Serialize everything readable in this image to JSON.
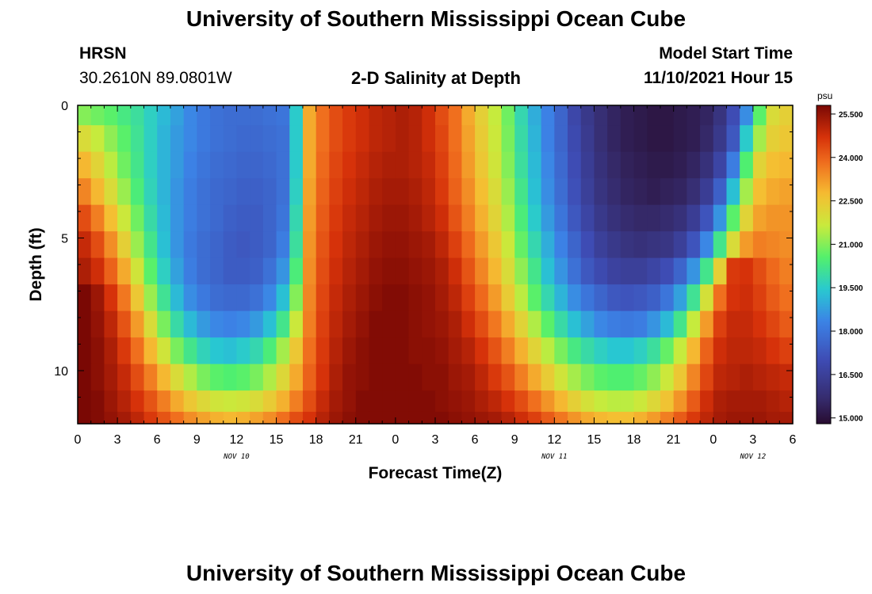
{
  "header": {
    "title": "University of Southern Mississippi Ocean Cube",
    "station": "HRSN",
    "coords": "30.2610N  89.0801W",
    "plot_title": "2-D Salinity at Depth",
    "model_start_label": "Model Start Time",
    "model_start_value": "11/10/2021 Hour 15"
  },
  "footer": {
    "title": "University of Southern Mississippi Ocean Cube"
  },
  "chart_data": {
    "type": "heatmap",
    "title": "2-D Salinity at Depth",
    "xlabel": "Forecast Time(Z)",
    "ylabel": "Depth (ft)",
    "colorbar_unit": "psu",
    "xlim": [
      0,
      54
    ],
    "ylim": [
      0,
      12
    ],
    "x_tick_values": [
      0,
      3,
      6,
      9,
      12,
      15,
      18,
      21,
      24,
      27,
      30,
      33,
      36,
      39,
      42,
      45,
      48,
      51,
      54
    ],
    "x_tick_labels": [
      "0",
      "3",
      "6",
      "9",
      "12",
      "15",
      "18",
      "21",
      "0",
      "3",
      "6",
      "9",
      "12",
      "15",
      "18",
      "21",
      "0",
      "3",
      "6"
    ],
    "date_labels": [
      {
        "text": "NOV 10",
        "hours": 12
      },
      {
        "text": "NOV 11",
        "hours": 36
      },
      {
        "text": "NOV 12",
        "hours": 51
      }
    ],
    "y_ticks": [
      0,
      5,
      10
    ],
    "y_tick_labels": [
      "0",
      "5",
      "10"
    ],
    "colorbar_ticks": [
      25.5,
      24.0,
      22.5,
      21.0,
      19.5,
      18.0,
      16.5,
      15.0
    ],
    "colorbar_tick_labels": [
      "25.500",
      "24.000",
      "22.500",
      "21.000",
      "19.500",
      "18.000",
      "16.500",
      "15.000"
    ],
    "color_range": [
      14.8,
      25.8
    ],
    "depth_layers_ft": [
      0.25,
      1.25,
      2.25,
      3.25,
      4.25,
      5.25,
      6.25,
      7.25,
      8.25,
      9.25,
      10.25,
      11.25,
      11.85
    ],
    "column_hours": [
      0,
      1,
      2,
      3,
      4,
      5,
      6,
      7,
      8,
      9,
      10,
      11,
      12,
      13,
      14,
      15,
      16,
      17,
      18,
      19,
      20,
      21,
      22,
      23,
      24,
      25,
      26,
      27,
      28,
      29,
      30,
      31,
      32,
      33,
      34,
      35,
      36,
      37,
      38,
      39,
      40,
      41,
      42,
      43,
      44,
      45,
      46,
      47,
      48,
      49,
      50,
      51,
      52,
      53
    ],
    "salinity_grid_psu": [
      [
        21.0,
        20.8,
        20.6,
        20.3,
        20.0,
        19.6,
        19.2,
        18.8,
        18.4,
        18.1,
        17.9,
        17.8,
        17.8,
        17.8,
        17.9,
        18.0,
        19.5,
        23.0,
        23.8,
        24.3,
        24.6,
        24.8,
        25.0,
        25.1,
        25.2,
        25.1,
        24.8,
        24.3,
        23.8,
        23.0,
        22.3,
        21.6,
        20.8,
        19.8,
        19.0,
        18.3,
        17.6,
        16.8,
        16.2,
        15.8,
        15.5,
        15.3,
        15.2,
        15.1,
        15.1,
        15.2,
        15.3,
        15.5,
        16.0,
        17.0,
        18.5,
        20.6,
        22.0,
        22.3
      ],
      [
        22.0,
        21.6,
        21.1,
        20.6,
        20.1,
        19.6,
        19.1,
        18.7,
        18.4,
        18.1,
        17.9,
        17.8,
        17.7,
        17.7,
        17.8,
        17.9,
        19.5,
        23.0,
        23.8,
        24.3,
        24.6,
        24.8,
        25.0,
        25.1,
        25.2,
        25.1,
        24.8,
        24.4,
        23.8,
        23.1,
        22.4,
        21.7,
        20.9,
        19.9,
        19.1,
        18.3,
        17.6,
        16.9,
        16.3,
        15.8,
        15.5,
        15.3,
        15.2,
        15.1,
        15.1,
        15.2,
        15.3,
        15.6,
        16.2,
        17.3,
        19.5,
        21.3,
        22.3,
        22.5
      ],
      [
        22.8,
        22.2,
        21.5,
        20.8,
        20.2,
        19.6,
        19.1,
        18.7,
        18.3,
        18.0,
        17.8,
        17.7,
        17.6,
        17.6,
        17.7,
        17.9,
        19.5,
        23.0,
        23.9,
        24.4,
        24.7,
        24.9,
        25.1,
        25.2,
        25.2,
        25.1,
        24.9,
        24.5,
        23.9,
        23.2,
        22.5,
        21.8,
        21.0,
        20.0,
        19.2,
        18.4,
        17.7,
        17.0,
        16.4,
        15.9,
        15.6,
        15.4,
        15.3,
        15.2,
        15.2,
        15.3,
        15.5,
        15.9,
        16.7,
        18.2,
        20.5,
        22.2,
        22.7,
        22.8
      ],
      [
        23.5,
        22.8,
        22.0,
        21.2,
        20.4,
        19.7,
        19.1,
        18.6,
        18.2,
        17.9,
        17.7,
        17.6,
        17.5,
        17.5,
        17.6,
        17.9,
        19.6,
        23.1,
        24.0,
        24.5,
        24.8,
        25.0,
        25.2,
        25.3,
        25.3,
        25.2,
        25.0,
        24.6,
        24.0,
        23.4,
        22.7,
        22.0,
        21.2,
        20.2,
        19.3,
        18.5,
        17.8,
        17.1,
        16.5,
        16.0,
        15.7,
        15.5,
        15.4,
        15.3,
        15.4,
        15.5,
        15.8,
        16.4,
        17.5,
        19.3,
        21.3,
        22.7,
        23.0,
        23.1
      ],
      [
        24.3,
        23.6,
        22.7,
        21.7,
        20.8,
        19.9,
        19.2,
        18.6,
        18.2,
        17.9,
        17.7,
        17.5,
        17.4,
        17.4,
        17.6,
        18.0,
        19.8,
        23.2,
        24.1,
        24.6,
        24.9,
        25.1,
        25.3,
        25.4,
        25.4,
        25.3,
        25.1,
        24.8,
        24.2,
        23.6,
        22.9,
        22.2,
        21.4,
        20.4,
        19.5,
        18.7,
        18.0,
        17.3,
        16.7,
        16.2,
        15.9,
        15.7,
        15.6,
        15.6,
        15.7,
        15.9,
        16.4,
        17.2,
        18.6,
        20.6,
        22.2,
        23.1,
        23.3,
        23.3
      ],
      [
        24.9,
        24.3,
        23.4,
        22.3,
        21.2,
        20.2,
        19.3,
        18.6,
        18.1,
        17.8,
        17.6,
        17.4,
        17.3,
        17.4,
        17.6,
        18.2,
        20.0,
        23.3,
        24.2,
        24.7,
        25.0,
        25.2,
        25.4,
        25.5,
        25.5,
        25.4,
        25.3,
        25.0,
        24.5,
        23.9,
        23.2,
        22.5,
        21.7,
        20.7,
        19.8,
        19.0,
        18.3,
        17.6,
        17.0,
        16.5,
        16.2,
        16.0,
        15.9,
        16.0,
        16.1,
        16.5,
        17.2,
        18.4,
        20.2,
        22.0,
        23.2,
        23.6,
        23.5,
        23.4
      ],
      [
        25.2,
        24.8,
        24.0,
        23.0,
        21.8,
        20.6,
        19.6,
        18.8,
        18.2,
        17.8,
        17.6,
        17.4,
        17.4,
        17.5,
        17.9,
        18.6,
        20.4,
        23.4,
        24.3,
        24.8,
        25.1,
        25.3,
        25.5,
        25.6,
        25.6,
        25.5,
        25.4,
        25.2,
        24.8,
        24.2,
        23.5,
        22.8,
        22.0,
        21.1,
        20.2,
        19.3,
        18.6,
        17.9,
        17.3,
        16.9,
        16.6,
        16.5,
        16.5,
        16.7,
        17.0,
        17.6,
        18.6,
        20.2,
        22.3,
        24.6,
        24.7,
        24.3,
        23.9,
        23.6
      ],
      [
        25.8,
        25.4,
        24.7,
        23.7,
        22.5,
        21.2,
        20.1,
        19.2,
        18.5,
        18.1,
        17.8,
        17.7,
        17.7,
        17.9,
        18.4,
        19.3,
        21.0,
        23.5,
        24.4,
        24.9,
        25.2,
        25.4,
        25.6,
        25.7,
        25.7,
        25.6,
        25.5,
        25.3,
        25.0,
        24.5,
        23.9,
        23.2,
        22.4,
        21.5,
        20.6,
        19.8,
        19.1,
        18.5,
        18.0,
        17.6,
        17.3,
        17.2,
        17.3,
        17.5,
        18.0,
        18.8,
        20.1,
        21.9,
        23.8,
        24.7,
        24.8,
        24.5,
        24.1,
        23.8
      ],
      [
        25.8,
        25.5,
        25.0,
        24.2,
        23.2,
        22.0,
        20.9,
        19.9,
        19.2,
        18.7,
        18.4,
        18.3,
        18.4,
        18.7,
        19.3,
        20.2,
        21.7,
        23.6,
        24.5,
        25.0,
        25.3,
        25.5,
        25.7,
        25.7,
        25.7,
        25.6,
        25.5,
        25.4,
        25.2,
        24.8,
        24.3,
        23.7,
        23.0,
        22.2,
        21.4,
        20.6,
        19.9,
        19.3,
        18.8,
        18.4,
        18.2,
        18.1,
        18.2,
        18.6,
        19.2,
        20.2,
        21.6,
        23.2,
        24.5,
        24.9,
        24.9,
        24.7,
        24.4,
        24.1
      ],
      [
        25.8,
        25.6,
        25.2,
        24.6,
        23.8,
        22.8,
        21.8,
        20.9,
        20.2,
        19.7,
        19.4,
        19.3,
        19.5,
        19.8,
        20.4,
        21.3,
        22.5,
        23.8,
        24.6,
        25.1,
        25.4,
        25.6,
        25.7,
        25.7,
        25.7,
        25.6,
        25.6,
        25.5,
        25.3,
        25.1,
        24.7,
        24.2,
        23.6,
        22.9,
        22.2,
        21.5,
        20.9,
        20.3,
        19.9,
        19.6,
        19.4,
        19.4,
        19.6,
        20.0,
        20.7,
        21.6,
        22.8,
        24.0,
        24.8,
        25.0,
        25.0,
        24.9,
        24.7,
        24.5
      ],
      [
        25.8,
        25.6,
        25.3,
        24.9,
        24.3,
        23.6,
        22.8,
        22.0,
        21.4,
        20.9,
        20.6,
        20.5,
        20.6,
        20.9,
        21.4,
        22.1,
        23.0,
        24.0,
        24.7,
        25.2,
        25.5,
        25.6,
        25.7,
        25.7,
        25.7,
        25.7,
        25.6,
        25.6,
        25.4,
        25.3,
        25.0,
        24.6,
        24.2,
        23.6,
        23.0,
        22.4,
        21.8,
        21.3,
        20.9,
        20.6,
        20.5,
        20.5,
        20.7,
        21.1,
        21.7,
        22.5,
        23.5,
        24.4,
        25.0,
        25.1,
        25.2,
        25.1,
        25.0,
        24.9
      ],
      [
        25.8,
        25.7,
        25.4,
        25.1,
        24.7,
        24.2,
        23.6,
        23.0,
        22.5,
        22.1,
        21.8,
        21.7,
        21.8,
        22.0,
        22.4,
        22.9,
        23.6,
        24.3,
        24.9,
        25.3,
        25.5,
        25.7,
        25.7,
        25.7,
        25.7,
        25.7,
        25.7,
        25.6,
        25.5,
        25.4,
        25.2,
        25.0,
        24.7,
        24.3,
        23.8,
        23.3,
        22.8,
        22.3,
        21.9,
        21.6,
        21.5,
        21.5,
        21.7,
        22.1,
        22.6,
        23.3,
        24.1,
        24.8,
        25.2,
        25.3,
        25.3,
        25.3,
        25.2,
        25.1
      ],
      [
        25.8,
        25.7,
        25.5,
        25.3,
        25.0,
        24.6,
        24.2,
        23.8,
        23.4,
        23.1,
        22.9,
        22.8,
        22.9,
        23.1,
        23.4,
        23.8,
        24.3,
        24.7,
        25.1,
        25.4,
        25.6,
        25.7,
        25.7,
        25.7,
        25.7,
        25.7,
        25.7,
        25.7,
        25.6,
        25.5,
        25.4,
        25.3,
        25.1,
        24.8,
        24.5,
        24.1,
        23.7,
        23.3,
        23.0,
        22.8,
        22.7,
        22.7,
        22.9,
        23.2,
        23.6,
        24.1,
        24.6,
        25.0,
        25.3,
        25.4,
        25.4,
        25.4,
        25.3,
        25.3
      ]
    ]
  }
}
